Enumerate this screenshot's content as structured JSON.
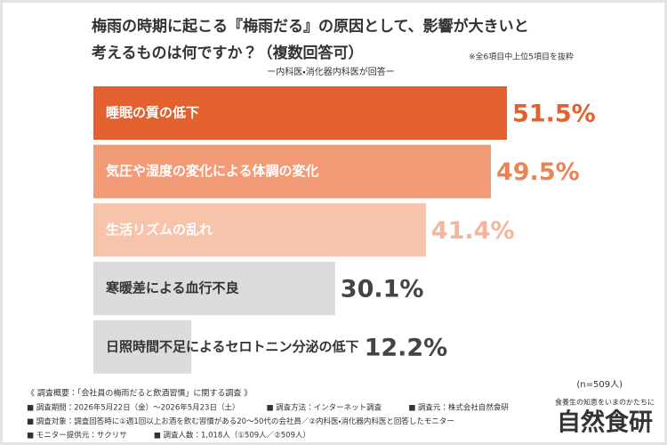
{
  "chart_data": {
    "type": "bar",
    "title": [
      "梅雨の時期に起こる『梅雨だる』の原因として、影響が大きいと",
      "考えるものは何ですか？（複数回答可）"
    ],
    "note": "※全6項目中上位5項目を抜粋",
    "subtitle": "ー内科医・消化器内科医が回答ー",
    "categories": [
      "睡眠の質の低下",
      "気圧や湿度の変化による体調の変化",
      "生活リズムの乱れ",
      "寒暖差による血行不良",
      "日照時間不足によるセロトニン分泌の低下"
    ],
    "values": [
      51.5,
      49.5,
      41.4,
      30.1,
      12.2
    ],
    "value_labels": [
      "51.5%",
      "49.5%",
      "41.4%",
      "30.1%",
      "12.2%"
    ],
    "colors": [
      "#e2612f",
      "#f29b76",
      "#f8c3ab",
      "#dcdcdc",
      "#dcdcdc"
    ],
    "label_colors": [
      "#ffffff",
      "#ffffff",
      "#ffffff",
      "#333333",
      "#333333"
    ],
    "value_label_colors": [
      "#e2612f",
      "#ea8454",
      "#f5b59b",
      "#444444",
      "#444444"
    ],
    "sample": "(n=509人)"
  },
  "survey": {
    "heading": "《 調査概要：「会社員の梅雨だると飲酒習慣」に関する調査 》",
    "lines": [
      [
        "■ 調査期間：2026年5月22日（金）～2026年5月23日（土）",
        "■ 調査方法：インターネット調査",
        "■ 調査元：株式会社自然食研"
      ],
      [
        "■ 調査対象：調査回答時に①週1回以上お酒を飲む習慣がある20～50代の会社員／②内科医・消化器内科医と回答したモニター"
      ],
      [
        "■ モニター提供元：サクリサ",
        "■ 調査人数：1,018人（①509人／②509人）"
      ]
    ]
  },
  "logo": {
    "tagline": "食養生の知恵をいまのかたちに",
    "name": "自然食研"
  }
}
